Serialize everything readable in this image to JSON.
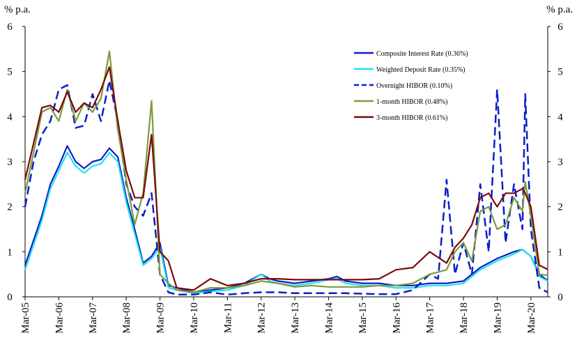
{
  "unit_left": "% p.a.",
  "unit_right": "% p.a.",
  "chart_data": {
    "type": "line",
    "title": "",
    "xlabel": "",
    "ylabel": "% p.a.",
    "ylim": [
      0,
      6
    ],
    "yticks": [
      "0",
      "1",
      "2",
      "3",
      "4",
      "5",
      "6"
    ],
    "xlim": [
      "2005-03",
      "2020-09"
    ],
    "xticks": [
      "Mar-05",
      "Mar-06",
      "Mar-07",
      "Mar-08",
      "Mar-09",
      "Mar-10",
      "Mar-11",
      "Mar-12",
      "Mar-13",
      "Mar-14",
      "Mar-15",
      "Mar-16",
      "Mar-17",
      "Mar-18",
      "Mar-19",
      "Mar-20"
    ],
    "grid": false,
    "legend_position": "top-right",
    "series": [
      {
        "name": "Composite Interest Rate (0.36%)",
        "color": "#0a1fc8",
        "style": "solid",
        "points": [
          [
            "2005-03",
            0.7
          ],
          [
            "2005-09",
            1.8
          ],
          [
            "2005-12",
            2.5
          ],
          [
            "2006-03",
            2.9
          ],
          [
            "2006-06",
            3.35
          ],
          [
            "2006-09",
            3.0
          ],
          [
            "2006-12",
            2.85
          ],
          [
            "2007-03",
            3.0
          ],
          [
            "2007-06",
            3.05
          ],
          [
            "2007-09",
            3.3
          ],
          [
            "2007-12",
            3.1
          ],
          [
            "2008-03",
            2.2
          ],
          [
            "2008-06",
            1.5
          ],
          [
            "2008-09",
            0.75
          ],
          [
            "2008-12",
            0.9
          ],
          [
            "2009-03",
            1.2
          ],
          [
            "2009-06",
            0.25
          ],
          [
            "2009-09",
            0.2
          ],
          [
            "2010-03",
            0.1
          ],
          [
            "2010-09",
            0.15
          ],
          [
            "2011-03",
            0.2
          ],
          [
            "2011-09",
            0.3
          ],
          [
            "2012-03",
            0.5
          ],
          [
            "2012-06",
            0.4
          ],
          [
            "2012-09",
            0.35
          ],
          [
            "2013-03",
            0.3
          ],
          [
            "2013-09",
            0.35
          ],
          [
            "2014-03",
            0.4
          ],
          [
            "2014-06",
            0.45
          ],
          [
            "2014-09",
            0.35
          ],
          [
            "2015-03",
            0.3
          ],
          [
            "2015-09",
            0.3
          ],
          [
            "2016-03",
            0.25
          ],
          [
            "2016-09",
            0.25
          ],
          [
            "2017-03",
            0.3
          ],
          [
            "2017-09",
            0.3
          ],
          [
            "2018-03",
            0.35
          ],
          [
            "2018-09",
            0.65
          ],
          [
            "2019-03",
            0.85
          ],
          [
            "2019-09",
            1.0
          ],
          [
            "2019-12",
            1.05
          ],
          [
            "2020-03",
            0.9
          ],
          [
            "2020-06",
            0.5
          ],
          [
            "2020-09",
            0.36
          ]
        ]
      },
      {
        "name": "Weighted Deposit Rate (0.35%)",
        "color": "#22e0f0",
        "style": "solid",
        "points": [
          [
            "2005-03",
            0.6
          ],
          [
            "2005-09",
            1.7
          ],
          [
            "2005-12",
            2.4
          ],
          [
            "2006-03",
            2.8
          ],
          [
            "2006-06",
            3.2
          ],
          [
            "2006-09",
            2.9
          ],
          [
            "2006-12",
            2.75
          ],
          [
            "2007-03",
            2.9
          ],
          [
            "2007-06",
            2.95
          ],
          [
            "2007-09",
            3.2
          ],
          [
            "2007-12",
            3.0
          ],
          [
            "2008-03",
            2.1
          ],
          [
            "2008-06",
            1.4
          ],
          [
            "2008-09",
            0.7
          ],
          [
            "2008-12",
            0.85
          ],
          [
            "2009-03",
            1.1
          ],
          [
            "2009-06",
            0.2
          ],
          [
            "2009-09",
            0.15
          ],
          [
            "2010-03",
            0.08
          ],
          [
            "2010-09",
            0.12
          ],
          [
            "2011-03",
            0.15
          ],
          [
            "2011-09",
            0.25
          ],
          [
            "2012-03",
            0.5
          ],
          [
            "2012-06",
            0.35
          ],
          [
            "2012-09",
            0.3
          ],
          [
            "2013-03",
            0.25
          ],
          [
            "2013-09",
            0.3
          ],
          [
            "2014-03",
            0.38
          ],
          [
            "2014-06",
            0.4
          ],
          [
            "2014-09",
            0.3
          ],
          [
            "2015-03",
            0.25
          ],
          [
            "2015-09",
            0.25
          ],
          [
            "2016-03",
            0.2
          ],
          [
            "2016-09",
            0.2
          ],
          [
            "2017-03",
            0.25
          ],
          [
            "2017-09",
            0.25
          ],
          [
            "2018-03",
            0.3
          ],
          [
            "2018-09",
            0.6
          ],
          [
            "2019-03",
            0.8
          ],
          [
            "2019-09",
            0.95
          ],
          [
            "2019-12",
            1.05
          ],
          [
            "2020-03",
            0.9
          ],
          [
            "2020-06",
            0.45
          ],
          [
            "2020-09",
            0.35
          ]
        ]
      },
      {
        "name": "Overnight HIBOR (0.10%)",
        "color": "#0a1fc8",
        "style": "dashed",
        "points": [
          [
            "2005-03",
            2.0
          ],
          [
            "2005-06",
            3.0
          ],
          [
            "2005-09",
            3.6
          ],
          [
            "2005-12",
            3.9
          ],
          [
            "2006-03",
            4.6
          ],
          [
            "2006-06",
            4.7
          ],
          [
            "2006-09",
            3.75
          ],
          [
            "2006-12",
            3.8
          ],
          [
            "2007-03",
            4.5
          ],
          [
            "2007-06",
            3.9
          ],
          [
            "2007-09",
            4.8
          ],
          [
            "2007-12",
            3.9
          ],
          [
            "2008-03",
            2.5
          ],
          [
            "2008-06",
            2.0
          ],
          [
            "2008-09",
            1.8
          ],
          [
            "2008-12",
            2.3
          ],
          [
            "2009-03",
            0.5
          ],
          [
            "2009-06",
            0.1
          ],
          [
            "2009-09",
            0.05
          ],
          [
            "2010-03",
            0.05
          ],
          [
            "2010-09",
            0.1
          ],
          [
            "2011-03",
            0.05
          ],
          [
            "2011-09",
            0.08
          ],
          [
            "2012-03",
            0.1
          ],
          [
            "2012-09",
            0.1
          ],
          [
            "2013-03",
            0.08
          ],
          [
            "2013-09",
            0.08
          ],
          [
            "2014-03",
            0.08
          ],
          [
            "2014-09",
            0.08
          ],
          [
            "2015-03",
            0.07
          ],
          [
            "2015-09",
            0.06
          ],
          [
            "2016-03",
            0.06
          ],
          [
            "2016-09",
            0.15
          ],
          [
            "2017-03",
            0.5
          ],
          [
            "2017-06",
            0.4
          ],
          [
            "2017-09",
            2.6
          ],
          [
            "2017-12",
            0.5
          ],
          [
            "2018-03",
            1.2
          ],
          [
            "2018-06",
            0.5
          ],
          [
            "2018-09",
            2.5
          ],
          [
            "2018-12",
            1.0
          ],
          [
            "2019-03",
            4.6
          ],
          [
            "2019-06",
            1.2
          ],
          [
            "2019-09",
            2.5
          ],
          [
            "2019-12",
            1.5
          ],
          [
            "2020-01",
            4.5
          ],
          [
            "2020-03",
            1.5
          ],
          [
            "2020-06",
            0.2
          ],
          [
            "2020-09",
            0.1
          ]
        ]
      },
      {
        "name": "1-month HIBOR (0.48%)",
        "color": "#7c9a3e",
        "style": "solid",
        "points": [
          [
            "2005-03",
            2.3
          ],
          [
            "2005-06",
            3.2
          ],
          [
            "2005-09",
            4.1
          ],
          [
            "2005-12",
            4.2
          ],
          [
            "2006-03",
            3.9
          ],
          [
            "2006-06",
            4.6
          ],
          [
            "2006-09",
            3.9
          ],
          [
            "2006-12",
            4.3
          ],
          [
            "2007-03",
            4.1
          ],
          [
            "2007-06",
            4.4
          ],
          [
            "2007-09",
            5.45
          ],
          [
            "2007-12",
            3.7
          ],
          [
            "2008-03",
            2.6
          ],
          [
            "2008-06",
            1.6
          ],
          [
            "2008-09",
            2.3
          ],
          [
            "2008-12",
            4.35
          ],
          [
            "2009-03",
            0.5
          ],
          [
            "2009-06",
            0.3
          ],
          [
            "2009-09",
            0.15
          ],
          [
            "2010-03",
            0.1
          ],
          [
            "2010-09",
            0.2
          ],
          [
            "2011-03",
            0.2
          ],
          [
            "2011-09",
            0.25
          ],
          [
            "2012-03",
            0.35
          ],
          [
            "2012-09",
            0.3
          ],
          [
            "2013-03",
            0.22
          ],
          [
            "2013-09",
            0.25
          ],
          [
            "2014-03",
            0.22
          ],
          [
            "2014-09",
            0.22
          ],
          [
            "2015-03",
            0.22
          ],
          [
            "2015-09",
            0.25
          ],
          [
            "2016-03",
            0.25
          ],
          [
            "2016-09",
            0.3
          ],
          [
            "2017-03",
            0.5
          ],
          [
            "2017-09",
            0.6
          ],
          [
            "2017-12",
            1.0
          ],
          [
            "2018-03",
            1.2
          ],
          [
            "2018-06",
            0.8
          ],
          [
            "2018-09",
            1.9
          ],
          [
            "2018-12",
            2.0
          ],
          [
            "2019-03",
            1.5
          ],
          [
            "2019-06",
            1.6
          ],
          [
            "2019-09",
            2.2
          ],
          [
            "2019-12",
            1.9
          ],
          [
            "2020-01",
            2.55
          ],
          [
            "2020-03",
            1.8
          ],
          [
            "2020-06",
            0.5
          ],
          [
            "2020-09",
            0.48
          ]
        ]
      },
      {
        "name": "3-month HIBOR (0.61%)",
        "color": "#7a0a0a",
        "style": "solid",
        "points": [
          [
            "2005-03",
            2.6
          ],
          [
            "2005-06",
            3.4
          ],
          [
            "2005-09",
            4.2
          ],
          [
            "2005-12",
            4.25
          ],
          [
            "2006-03",
            4.1
          ],
          [
            "2006-06",
            4.55
          ],
          [
            "2006-09",
            4.1
          ],
          [
            "2006-12",
            4.3
          ],
          [
            "2007-03",
            4.2
          ],
          [
            "2007-06",
            4.6
          ],
          [
            "2007-09",
            5.1
          ],
          [
            "2007-12",
            3.9
          ],
          [
            "2008-03",
            2.8
          ],
          [
            "2008-06",
            2.2
          ],
          [
            "2008-09",
            2.2
          ],
          [
            "2008-12",
            3.6
          ],
          [
            "2009-03",
            1.0
          ],
          [
            "2009-06",
            0.8
          ],
          [
            "2009-09",
            0.2
          ],
          [
            "2010-03",
            0.15
          ],
          [
            "2010-09",
            0.4
          ],
          [
            "2011-03",
            0.25
          ],
          [
            "2011-09",
            0.3
          ],
          [
            "2012-03",
            0.4
          ],
          [
            "2012-09",
            0.4
          ],
          [
            "2013-03",
            0.38
          ],
          [
            "2013-09",
            0.38
          ],
          [
            "2014-03",
            0.38
          ],
          [
            "2014-09",
            0.38
          ],
          [
            "2015-03",
            0.38
          ],
          [
            "2015-09",
            0.4
          ],
          [
            "2016-03",
            0.6
          ],
          [
            "2016-09",
            0.65
          ],
          [
            "2017-03",
            1.0
          ],
          [
            "2017-09",
            0.75
          ],
          [
            "2017-12",
            1.1
          ],
          [
            "2018-03",
            1.3
          ],
          [
            "2018-06",
            1.6
          ],
          [
            "2018-09",
            2.2
          ],
          [
            "2018-12",
            2.3
          ],
          [
            "2019-03",
            2.0
          ],
          [
            "2019-06",
            2.3
          ],
          [
            "2019-09",
            2.3
          ],
          [
            "2019-12",
            2.4
          ],
          [
            "2020-01",
            2.3
          ],
          [
            "2020-03",
            2.0
          ],
          [
            "2020-06",
            0.7
          ],
          [
            "2020-09",
            0.61
          ]
        ]
      }
    ]
  }
}
